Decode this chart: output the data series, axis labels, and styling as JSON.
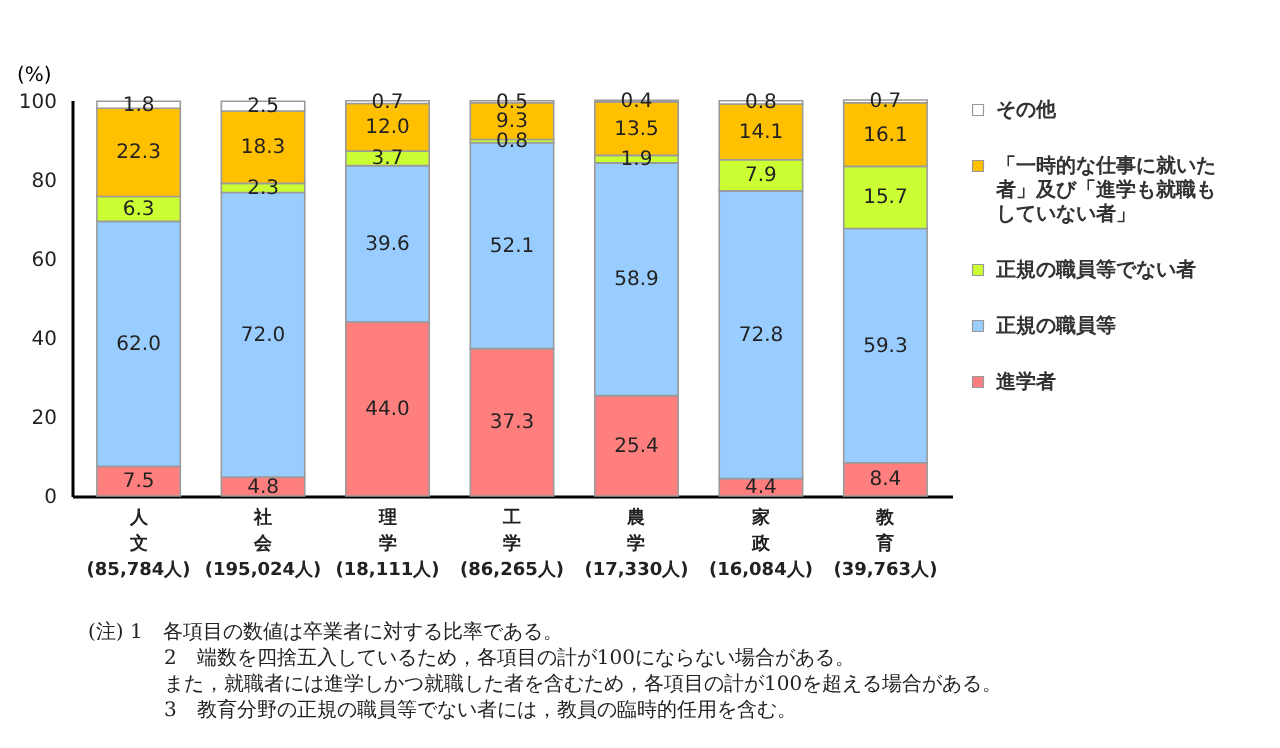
{
  "chart_data": {
    "type": "bar",
    "stacked": true,
    "ylabel": "(%)",
    "categories": [
      "人文(85,784人)",
      "社会(195,024人)",
      "理学(18,111人)",
      "工学(86,265人)",
      "農学(17,330人)",
      "家政(16,084人)",
      "教育(39,763人)"
    ],
    "series": [
      {
        "name": "進学者",
        "color": "#ff7f7f",
        "values": [
          7.5,
          4.8,
          44.0,
          37.3,
          25.4,
          4.4,
          8.4
        ],
        "value_labels": [
          "7.5",
          "4.8",
          "44.0",
          "37.3",
          "25.4",
          "4.4",
          "8.4"
        ]
      },
      {
        "name": "正規の職員等",
        "color": "#99ccff",
        "values": [
          62.0,
          72.0,
          39.6,
          52.1,
          58.9,
          72.8,
          59.3
        ],
        "value_labels": [
          "62.0",
          "72.0",
          "39.6",
          "52.1",
          "58.9",
          "72.8",
          "59.3"
        ]
      },
      {
        "name": "正規の職員等でない者",
        "color": "#ccff33",
        "values": [
          6.3,
          2.3,
          3.7,
          0.8,
          1.9,
          7.9,
          15.7
        ],
        "value_labels": [
          "6.3",
          "2.3",
          "3.7",
          "0.8",
          "1.9",
          "7.9",
          "15.7"
        ]
      },
      {
        "name": "「一時的な仕事に就いた者」及び「進学も就職もしていない者」",
        "color": "#ffc000",
        "values": [
          22.3,
          18.3,
          12.0,
          9.3,
          13.5,
          14.1,
          16.1
        ],
        "value_labels": [
          "22.3",
          "18.3",
          "12.0",
          "9.3",
          "13.5",
          "14.1",
          "16.1"
        ]
      },
      {
        "name": "その他",
        "color": "#ffffff",
        "values": [
          1.8,
          2.5,
          0.7,
          0.5,
          0.4,
          0.8,
          0.7
        ],
        "value_labels": [
          "1.8",
          "2.5",
          "0.7",
          "0.5",
          "0.4",
          "0.8",
          "0.7"
        ]
      }
    ],
    "ylim": [
      0,
      100.2
    ],
    "yticks": [
      0,
      20,
      40,
      60,
      80,
      100
    ],
    "grid": false,
    "legend": "right",
    "annotations": [
      "(注) 1　各項目の数値は卒業者に対する比率である。",
      "2　端数を四捨五入しているため，各項目の計が100にならない場合がある。",
      "また，就職者には進学しかつ就職した者を含むため，各項目の計が100を超える場合がある。",
      "3　教育分野の正規の職員等でない者には，教員の臨時的任用を含む。"
    ]
  }
}
